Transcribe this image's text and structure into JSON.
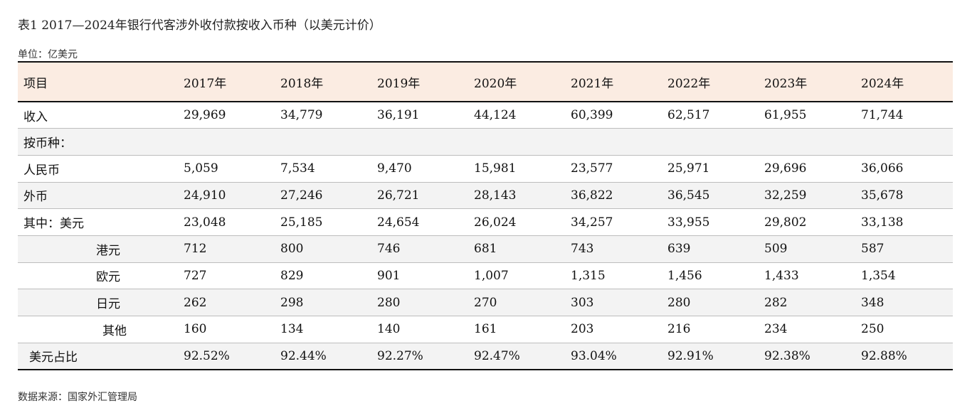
{
  "title": "表1 2017—2024年银行代客涉外收付款按收入币种（以美元计价）",
  "unit": "单位：亿美元",
  "table": {
    "headers": [
      "项目",
      "2017年",
      "2018年",
      "2019年",
      "2020年",
      "2021年",
      "2022年",
      "2023年",
      "2024年"
    ],
    "rows": [
      {
        "label": "收入",
        "values": [
          "29,969",
          "34,779",
          "36,191",
          "44,124",
          "60,399",
          "62,517",
          "61,955",
          "71,744"
        ]
      },
      {
        "label": "按币种：",
        "values": [
          "",
          "",
          "",
          "",
          "",
          "",
          "",
          ""
        ]
      },
      {
        "label": "人民币",
        "values": [
          "5,059",
          "7,534",
          "9,470",
          "15,981",
          "23,577",
          "25,971",
          "29,696",
          "36,066"
        ]
      },
      {
        "label": "外币",
        "values": [
          "24,910",
          "27,246",
          "26,721",
          "28,143",
          "36,822",
          "36,545",
          "32,259",
          "35,678"
        ]
      },
      {
        "label": "其中：美元",
        "values": [
          "23,048",
          "25,185",
          "24,654",
          "26,024",
          "34,257",
          "33,955",
          "29,802",
          "33,138"
        ]
      },
      {
        "label": "港元",
        "values": [
          "712",
          "800",
          "746",
          "681",
          "743",
          "639",
          "509",
          "587"
        ]
      },
      {
        "label": "欧元",
        "values": [
          "727",
          "829",
          "901",
          "1,007",
          "1,315",
          "1,456",
          "1,433",
          "1,354"
        ]
      },
      {
        "label": "日元",
        "values": [
          "262",
          "298",
          "280",
          "270",
          "303",
          "280",
          "282",
          "348"
        ]
      },
      {
        "label": "其他",
        "values": [
          "160",
          "134",
          "140",
          "161",
          "203",
          "216",
          "234",
          "250"
        ]
      },
      {
        "label": "美元占比",
        "values": [
          "92.52%",
          "92.44%",
          "92.27%",
          "92.47%",
          "93.04%",
          "92.91%",
          "92.38%",
          "92.88%"
        ]
      }
    ]
  },
  "source": "数据来源：国家外汇管理局",
  "colors": {
    "header_bg": "#fbece2",
    "alt_row_bg": "#f3f3f3",
    "rule": "#111111"
  }
}
